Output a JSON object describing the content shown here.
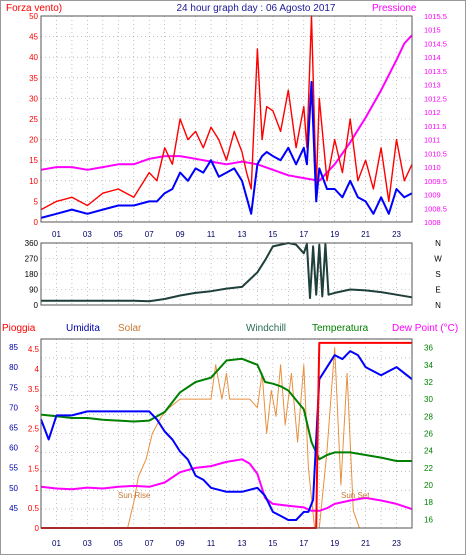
{
  "chart_data": [
    {
      "type": "line",
      "title": "24 hour graph day : 06 Agosto 2017",
      "left_axis_label": "Forza vento)",
      "right_axis_label": "Pressione",
      "x_ticks": [
        "01",
        "03",
        "05",
        "07",
        "09",
        "11",
        "13",
        "15",
        "17",
        "19",
        "21",
        "23"
      ],
      "ylim_left": [
        0,
        50
      ],
      "yticks_left": [
        "0",
        "5",
        "10",
        "15",
        "20",
        "25",
        "30",
        "35",
        "40",
        "45",
        "50"
      ],
      "ylim_right": [
        1008,
        1015.5
      ],
      "yticks_right": [
        "1008",
        "1008.5",
        "1009",
        "1009.5",
        "1010",
        "1010.5",
        "1011",
        "1011.5",
        "1012",
        "1012.5",
        "1013",
        "1013.5",
        "1014",
        "1014.5",
        "1015",
        "1015.5"
      ],
      "grid": true,
      "series": [
        {
          "role": "gust",
          "color": "#ff0000",
          "x": [
            0,
            1,
            2,
            3,
            4,
            5,
            6,
            7,
            7.5,
            8,
            8.5,
            9,
            9.5,
            10,
            10.5,
            11,
            11.5,
            12,
            12.5,
            13,
            13.3,
            13.6,
            14,
            14.3,
            14.6,
            15,
            15.5,
            16,
            16.5,
            17,
            17.2,
            17.5,
            17.8,
            18,
            18.5,
            19,
            19.5,
            20,
            20.5,
            21,
            21.5,
            22,
            22.5,
            23,
            23.5,
            24
          ],
          "y": [
            3,
            5,
            6,
            4,
            7,
            8,
            6,
            12,
            10,
            18,
            14,
            25,
            20,
            22,
            18,
            23,
            20,
            15,
            22,
            17,
            12,
            8,
            42,
            20,
            28,
            27,
            22,
            32,
            18,
            28,
            18,
            50,
            8,
            30,
            10,
            20,
            12,
            25,
            10,
            15,
            8,
            18,
            5,
            20,
            10,
            14
          ]
        },
        {
          "role": "average",
          "color": "#0000ff",
          "x": [
            0,
            1,
            2,
            3,
            4,
            5,
            6,
            7,
            7.5,
            8,
            8.5,
            9,
            9.5,
            10,
            10.5,
            11,
            11.5,
            12,
            12.5,
            13,
            13.3,
            13.6,
            14,
            14.3,
            14.6,
            15,
            15.5,
            16,
            16.5,
            17,
            17.2,
            17.5,
            17.8,
            18,
            18.5,
            19,
            19.5,
            20,
            20.5,
            21,
            21.5,
            22,
            22.5,
            23,
            23.5,
            24
          ],
          "y": [
            1,
            2,
            3,
            2,
            3,
            4,
            4,
            5,
            5,
            7,
            8,
            12,
            10,
            13,
            12,
            15,
            11,
            12,
            13,
            10,
            6,
            2,
            14,
            16,
            17,
            16,
            15,
            18,
            14,
            18,
            14,
            34,
            5,
            13,
            8,
            8,
            6,
            10,
            6,
            5,
            2,
            6,
            2,
            8,
            6,
            7
          ]
        },
        {
          "role": "pressure",
          "color": "#ff00ff",
          "axis": "right",
          "x": [
            0,
            1,
            2,
            3,
            4,
            5,
            6,
            7,
            8,
            9,
            10,
            11,
            12,
            13,
            14,
            15,
            16,
            17,
            18,
            19,
            20,
            21,
            22,
            23,
            23.5,
            24
          ],
          "y": [
            1009.9,
            1010.0,
            1010.0,
            1009.9,
            1010.0,
            1010.1,
            1010.1,
            1010.3,
            1010.4,
            1010.4,
            1010.3,
            1010.2,
            1010.1,
            1010.2,
            1010.1,
            1009.9,
            1009.7,
            1009.6,
            1009.5,
            1010.1,
            1010.9,
            1011.8,
            1012.8,
            1013.9,
            1014.5,
            1014.8
          ]
        }
      ]
    },
    {
      "type": "line",
      "right_labels": [
        "N",
        "W",
        "S",
        "E",
        "N"
      ],
      "ylim": [
        0,
        360
      ],
      "yticks": [
        "0",
        "90",
        "180",
        "270",
        "360"
      ],
      "grid": true,
      "series": [
        {
          "role": "direction",
          "color": "#1f3f3a",
          "x": [
            0,
            2,
            4,
            6,
            7,
            8,
            9,
            10,
            11,
            12,
            13,
            14,
            14.5,
            15,
            16,
            16.5,
            17,
            17.2,
            17.4,
            17.6,
            17.8,
            18,
            18.2,
            18.4,
            18.6,
            19,
            20,
            21,
            22,
            23,
            24
          ],
          "y": [
            25,
            25,
            25,
            25,
            22,
            35,
            55,
            70,
            80,
            95,
            105,
            190,
            260,
            340,
            360,
            350,
            300,
            355,
            40,
            340,
            60,
            350,
            50,
            355,
            60,
            70,
            90,
            85,
            75,
            60,
            45
          ]
        }
      ]
    },
    {
      "type": "line",
      "legend": [
        "Pioggia",
        "Umidita",
        "Solar",
        "Windchill",
        "Temperatura",
        "Dew Point (°C)"
      ],
      "legend_colors": [
        "#ff0000",
        "#0000ff",
        "#c87832",
        "#006633",
        "#008000",
        "#ff00ff"
      ],
      "yticks_rain": [
        "0",
        "0.5",
        "1",
        "1.5",
        "2",
        "2.5",
        "3",
        "3.5",
        "4",
        "4.5"
      ],
      "yticks_humidity": [
        "45",
        "50",
        "55",
        "60",
        "65",
        "70",
        "75",
        "80",
        "85"
      ],
      "ylim_humidity": [
        40,
        87
      ],
      "yticks_temp": [
        "16",
        "18",
        "20",
        "22",
        "24",
        "26",
        "28",
        "30",
        "32",
        "34",
        "36"
      ],
      "ylim_temp": [
        15,
        37
      ],
      "x_ticks": [
        "01",
        "03",
        "05",
        "07",
        "09",
        "11",
        "13",
        "15",
        "17",
        "19",
        "21",
        "23"
      ],
      "annotations": {
        "sun_rise": "Sun Rise",
        "sun_set": "Sun Set"
      },
      "grid": true,
      "series": [
        {
          "role": "humidity",
          "color": "#0000ff",
          "x": [
            0,
            0.5,
            1,
            2,
            3,
            4,
            5,
            6,
            7,
            7.5,
            8,
            8.5,
            9,
            9.5,
            10,
            10.5,
            11,
            12,
            13,
            14,
            14.5,
            15,
            15.5,
            16,
            16.5,
            17,
            17.3,
            17.6,
            18,
            19,
            19.5,
            20,
            20.5,
            21,
            22,
            23,
            24
          ],
          "y": [
            67,
            62,
            68,
            68,
            69,
            69,
            69,
            69,
            69,
            67,
            64,
            62,
            59,
            57,
            53,
            52,
            50,
            49,
            49,
            50,
            48,
            44,
            43,
            42,
            42,
            44,
            44,
            47,
            77,
            83,
            82,
            84,
            83,
            80,
            78,
            80,
            77
          ]
        },
        {
          "role": "temperature",
          "color": "#008000",
          "x": [
            0,
            1,
            2,
            3,
            4,
            5,
            6,
            7,
            8,
            9,
            10,
            11,
            11.5,
            12,
            13,
            14,
            14.5,
            15,
            15.5,
            16,
            17,
            17.5,
            18,
            18.5,
            19,
            20,
            21,
            22,
            23,
            24
          ],
          "y": [
            28.2,
            28.0,
            27.8,
            27.8,
            27.6,
            27.5,
            27.4,
            27.5,
            28.5,
            30.8,
            32.0,
            32.5,
            33.5,
            34.5,
            34.7,
            34.0,
            32.0,
            31.8,
            31.5,
            31.0,
            28.8,
            25.0,
            23.0,
            23.5,
            23.8,
            23.8,
            23.5,
            23.2,
            22.8,
            22.8
          ]
        },
        {
          "role": "dew_point",
          "color": "#ff00ff",
          "x": [
            0,
            1,
            2,
            3,
            4,
            5,
            6,
            7,
            8,
            9,
            10,
            11,
            12,
            13,
            13.5,
            14,
            14.5,
            15,
            16,
            17,
            17.5,
            18,
            18.5,
            19,
            20,
            21,
            22,
            23,
            24
          ],
          "y": [
            19.8,
            19.6,
            19.5,
            19.7,
            19.6,
            19.8,
            19.9,
            19.8,
            20.3,
            21.5,
            22.0,
            22.2,
            22.7,
            23.0,
            22.5,
            21.3,
            18.5,
            17.8,
            17.6,
            17.4,
            17.0,
            17.0,
            17.3,
            17.8,
            18.2,
            18.5,
            18.2,
            17.8,
            17.2
          ]
        },
        {
          "role": "solar",
          "color": "#e8903e",
          "x": [
            0,
            5.6,
            6.0,
            6.3,
            6.8,
            7.2,
            7.8,
            8.3,
            9.0,
            10.0,
            11.0,
            11.3,
            11.7,
            12.0,
            12.2,
            12.8,
            13.5,
            14.0,
            14.3,
            14.6,
            14.9,
            15.2,
            15.5,
            15.8,
            16.2,
            16.6,
            17.0,
            17.3,
            17.7,
            18.0,
            18.5,
            19.0,
            19.4,
            19.8,
            20.2,
            20.6,
            21.0,
            21.5,
            22.0,
            24
          ],
          "y": [
            15,
            15,
            18,
            21,
            23,
            26,
            28,
            29,
            30,
            30,
            30,
            34,
            30,
            33,
            30,
            30,
            30,
            29,
            33,
            26,
            31,
            28,
            34,
            27,
            33,
            25,
            34,
            22,
            15,
            15,
            24,
            36,
            20,
            33,
            17,
            15,
            15,
            15,
            15,
            15
          ]
        },
        {
          "role": "rain",
          "color": "#ff0000",
          "x": [
            0,
            17.8,
            17.9,
            18.0,
            24
          ],
          "y": [
            0,
            0,
            2.5,
            4.75,
            4.75
          ]
        }
      ]
    }
  ]
}
